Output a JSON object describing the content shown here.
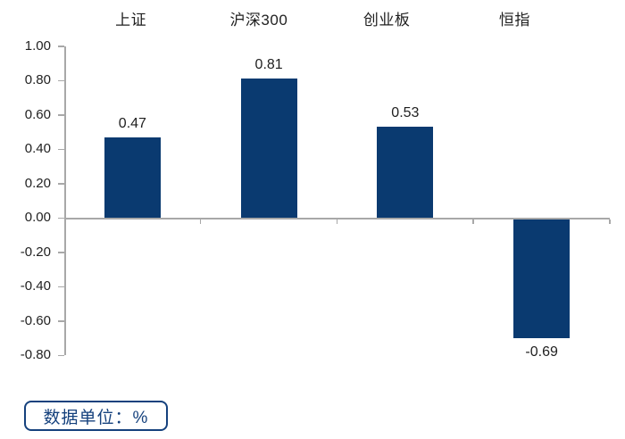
{
  "chart_data": {
    "type": "bar",
    "categories": [
      "上证",
      "沪深300",
      "创业板",
      "恒指"
    ],
    "values": [
      0.47,
      0.81,
      0.53,
      -0.69
    ],
    "value_labels": [
      "0.47",
      "0.81",
      "0.53",
      "-0.69"
    ],
    "title": "",
    "xlabel": "",
    "ylabel": "",
    "ylim": [
      -0.8,
      1.0
    ],
    "ytick_step": 0.2,
    "ytick_labels": [
      "1.00",
      "0.80",
      "0.60",
      "0.40",
      "0.20",
      "0.00",
      "-0.20",
      "-0.40",
      "-0.60",
      "-0.80"
    ],
    "grid": false,
    "legend_position": "none",
    "category_labels_position": "top",
    "bar_color": "#0a3a70",
    "axis_color": "#a8a8a8",
    "text_color": "#1f1f1f"
  },
  "footer": {
    "unit_label": "数据单位：%"
  },
  "colors": {
    "bar": "#0a3a70",
    "axis": "#a8a8a8",
    "text": "#1f1f1f",
    "badge": "#15417d",
    "background": "#ffffff"
  }
}
